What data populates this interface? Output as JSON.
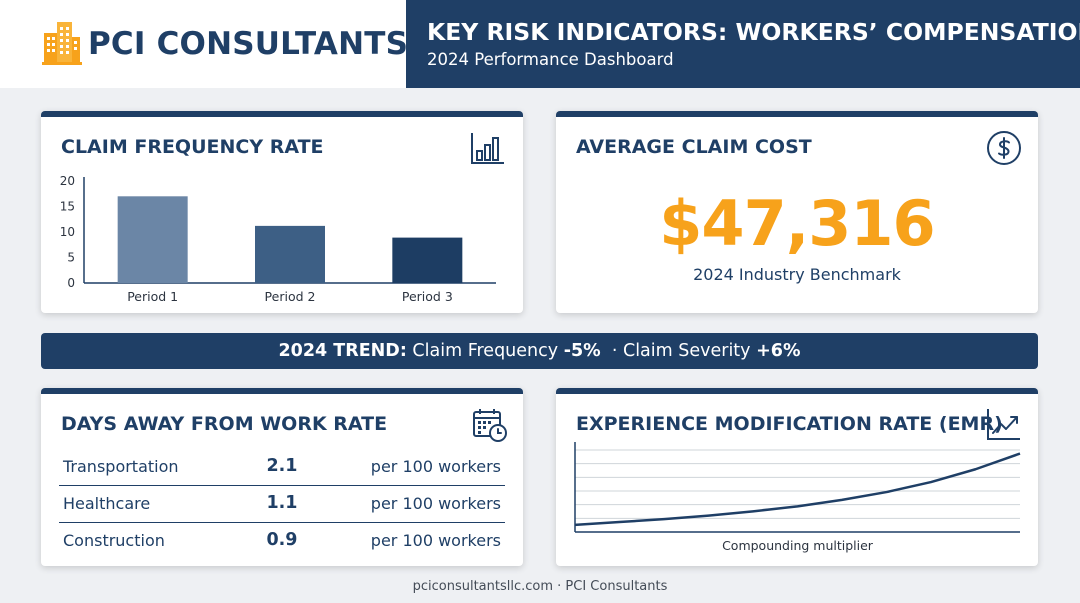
{
  "brand": {
    "name": "PCI CONSULTANTS"
  },
  "header": {
    "title": "KEY RISK INDICATORS: WORKERS’ COMPENSATION",
    "subtitle": "2024 Performance Dashboard"
  },
  "claim_frequency": {
    "title": "CLAIM FREQUENCY RATE",
    "icon": "bar-chart-icon"
  },
  "average_claim_cost": {
    "title": "AVERAGE CLAIM COST",
    "icon": "dollar-circle-icon",
    "value": "$47,316",
    "caption": "2024 Industry Benchmark"
  },
  "trend": {
    "label": "2024 TREND:",
    "frequency_label": "Claim Frequency",
    "frequency_value": "-5%",
    "separator": "·",
    "severity_label": "Claim Severity",
    "severity_value": "+6%"
  },
  "days_away": {
    "title": "DAYS AWAY FROM WORK RATE",
    "icon": "calendar-clock-icon",
    "rows": [
      {
        "industry": "Transportation",
        "value": "2.1",
        "unit": "per 100 workers"
      },
      {
        "industry": "Healthcare",
        "value": "1.1",
        "unit": "per 100 workers"
      },
      {
        "industry": "Construction",
        "value": "0.9",
        "unit": "per 100 workers"
      }
    ]
  },
  "emr": {
    "title": "EXPERIENCE MODIFICATION RATE (EMR)",
    "icon": "trend-up-icon",
    "caption": "Compounding multiplier"
  },
  "footer": {
    "text": "pciconsultantsllc.com · PCI Consultants"
  },
  "colors": {
    "navy": "#1f3f66",
    "accent_orange": "#f7a21b",
    "bar_1": "#6b86a6",
    "bar_2": "#3d5f85",
    "bar_3": "#1d3d63"
  },
  "chart_data": [
    {
      "type": "bar",
      "categories": [
        "Period 1",
        "Period 2",
        "Period 3"
      ],
      "values": [
        17,
        11.2,
        8.9
      ],
      "ylim": [
        0,
        20
      ],
      "yticks": [
        0,
        5,
        10,
        15,
        20
      ],
      "grid": false,
      "legend": "none"
    },
    {
      "type": "line",
      "x": [
        0,
        1,
        2,
        3,
        4,
        5,
        6,
        7,
        8,
        9,
        10
      ],
      "values": [
        1.0,
        1.04,
        1.08,
        1.13,
        1.19,
        1.26,
        1.35,
        1.46,
        1.6,
        1.78,
        2.0
      ],
      "xlabel": "Compounding multiplier",
      "grid": true,
      "legend": "none",
      "tick_labels": false
    }
  ]
}
